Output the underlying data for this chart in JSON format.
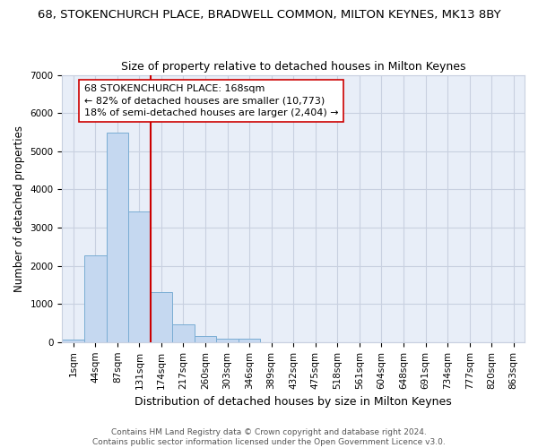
{
  "title": "68, STOKENCHURCH PLACE, BRADWELL COMMON, MILTON KEYNES, MK13 8BY",
  "subtitle": "Size of property relative to detached houses in Milton Keynes",
  "xlabel": "Distribution of detached houses by size in Milton Keynes",
  "ylabel": "Number of detached properties",
  "bin_labels": [
    "1sqm",
    "44sqm",
    "87sqm",
    "131sqm",
    "174sqm",
    "217sqm",
    "260sqm",
    "303sqm",
    "346sqm",
    "389sqm",
    "432sqm",
    "475sqm",
    "518sqm",
    "561sqm",
    "604sqm",
    "648sqm",
    "691sqm",
    "734sqm",
    "777sqm",
    "820sqm",
    "863sqm"
  ],
  "bin_values": [
    75,
    2270,
    5490,
    3430,
    1310,
    460,
    160,
    80,
    80,
    0,
    0,
    0,
    0,
    0,
    0,
    0,
    0,
    0,
    0,
    0,
    0
  ],
  "red_line_x": 4,
  "annotation_text": "68 STOKENCHURCH PLACE: 168sqm\n← 82% of detached houses are smaller (10,773)\n18% of semi-detached houses are larger (2,404) →",
  "bar_color": "#c5d8f0",
  "bar_edge_color": "#7aadd4",
  "red_line_color": "#cc0000",
  "bg_color": "#e8eef8",
  "grid_color": "#c8d0e0",
  "footer_text": "Contains HM Land Registry data © Crown copyright and database right 2024.\nContains public sector information licensed under the Open Government Licence v3.0.",
  "ylim": [
    0,
    7000
  ],
  "title_fontsize": 9.5,
  "subtitle_fontsize": 9,
  "xlabel_fontsize": 9,
  "ylabel_fontsize": 8.5,
  "annotation_fontsize": 8,
  "tick_fontsize": 7.5,
  "footer_fontsize": 6.5
}
